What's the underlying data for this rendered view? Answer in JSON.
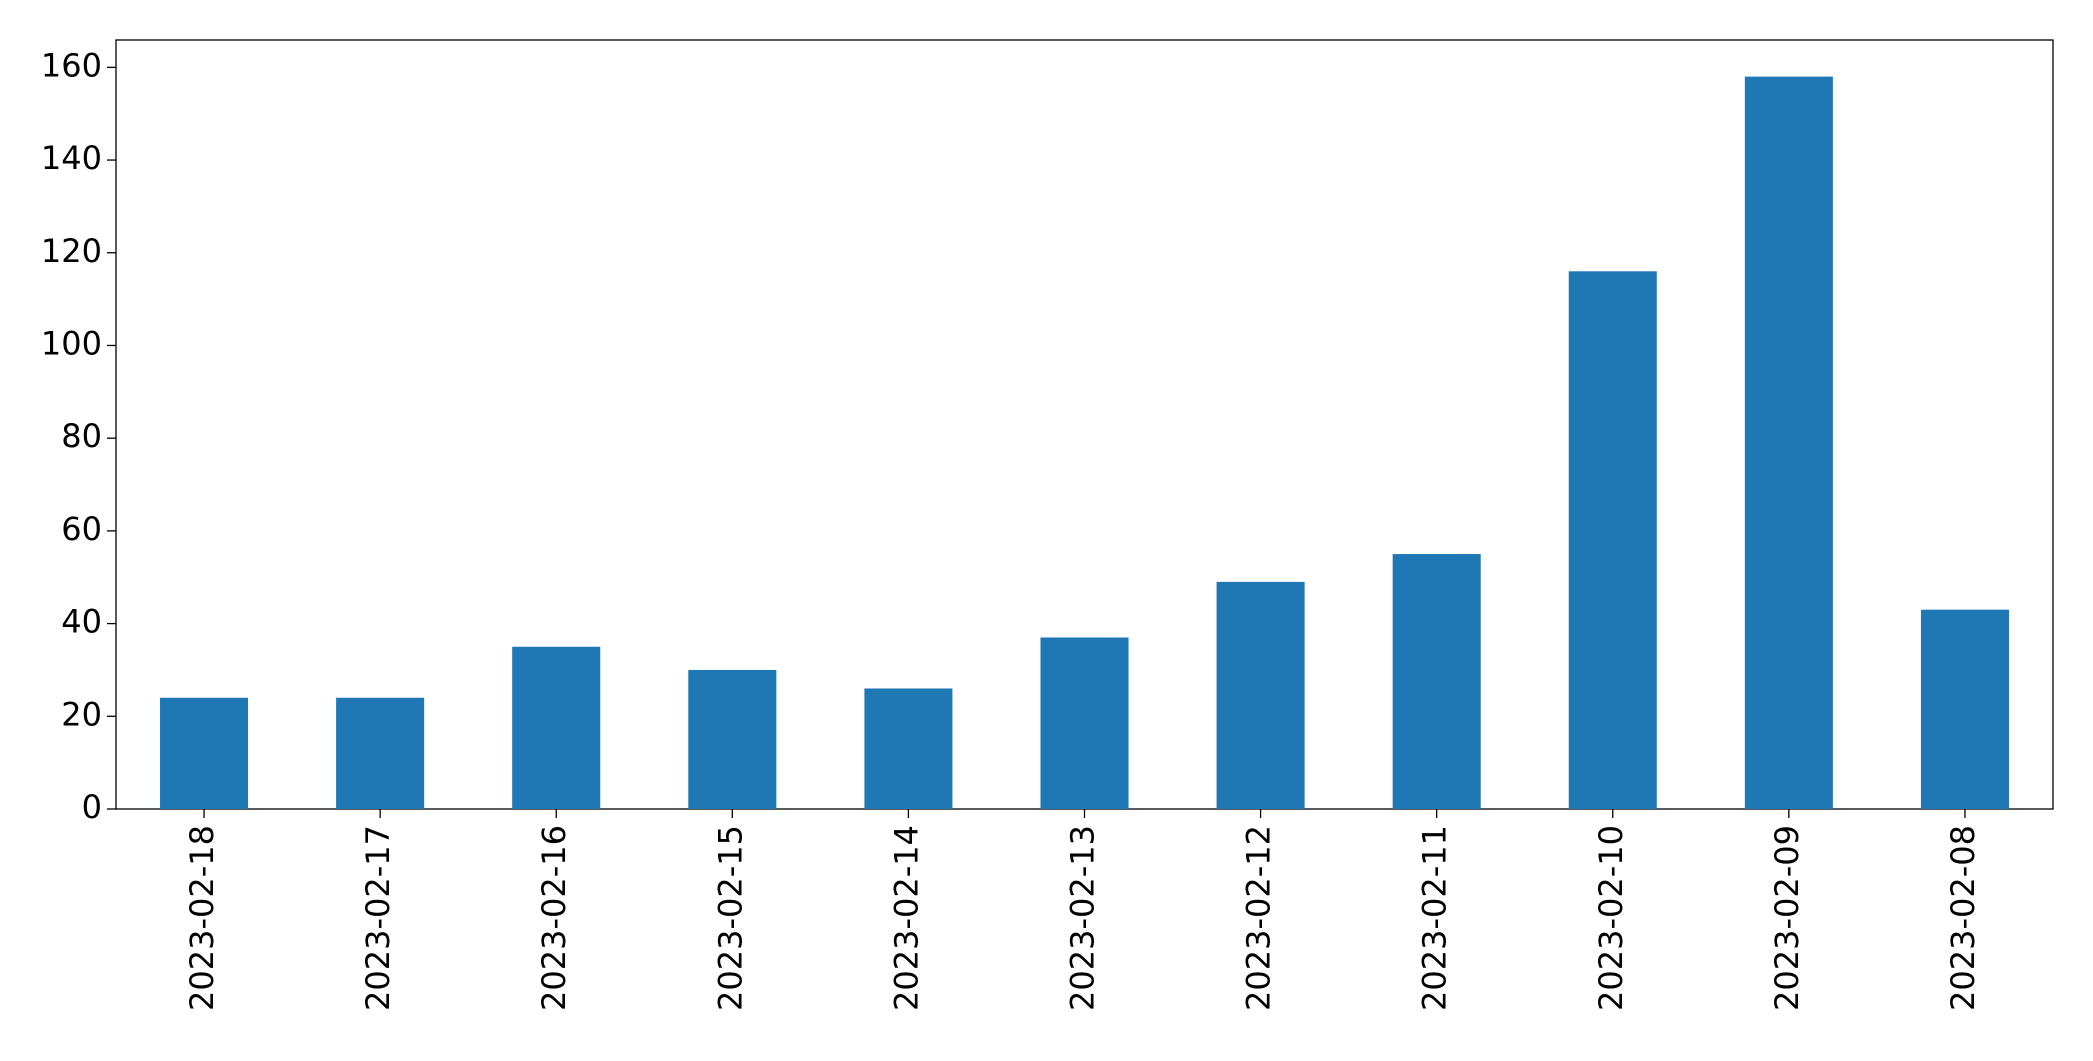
{
  "chart_data": {
    "type": "bar",
    "categories": [
      "2023-02-18",
      "2023-02-17",
      "2023-02-16",
      "2023-02-15",
      "2023-02-14",
      "2023-02-13",
      "2023-02-12",
      "2023-02-11",
      "2023-02-10",
      "2023-02-09",
      "2023-02-08"
    ],
    "values": [
      24,
      24,
      35,
      30,
      26,
      37,
      49,
      55,
      116,
      158,
      43
    ],
    "color": "#1f77b4",
    "ylim": [
      0,
      165.9
    ],
    "yticks": [
      0,
      20,
      40,
      60,
      80,
      100,
      120,
      140,
      160
    ],
    "grid": false
  }
}
